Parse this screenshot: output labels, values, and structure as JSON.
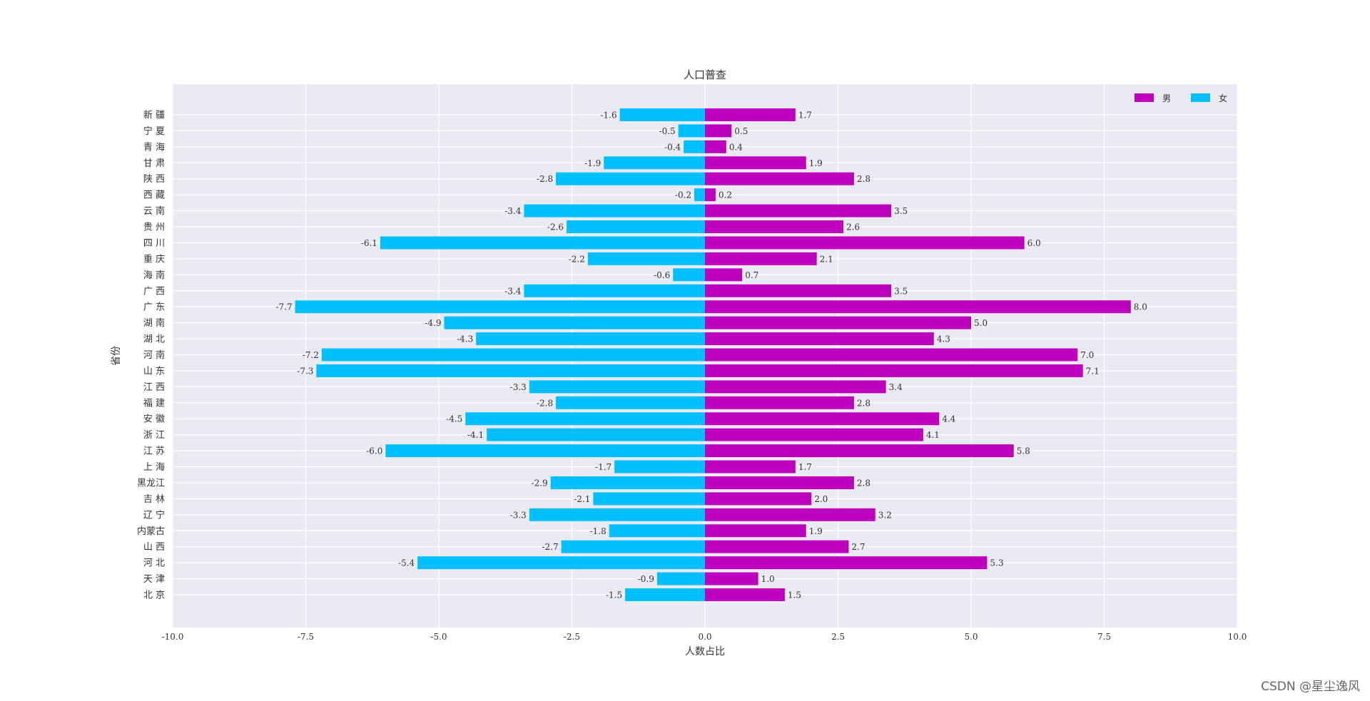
{
  "watermark": "CSDN @星尘逸风",
  "chart_data": {
    "type": "bar",
    "orientation": "horizontal",
    "title": "人口普查",
    "xlabel": "人数占比",
    "ylabel": "省份",
    "xlim": [
      -10,
      10
    ],
    "xticks": [
      -10,
      -7.5,
      -5,
      -2.5,
      0,
      2.5,
      5,
      7.5,
      10
    ],
    "xtick_labels": [
      "-10.0",
      "-7.5",
      "-5.0",
      "-2.5",
      "0.0",
      "2.5",
      "5.0",
      "7.5",
      "10.0"
    ],
    "grid": true,
    "legend_position": "top-right",
    "categories": [
      "北 京",
      "天 津",
      "河 北",
      "山 西",
      "内蒙古",
      "辽 宁",
      "吉 林",
      "黑龙江",
      "上 海",
      "江 苏",
      "浙 江",
      "安 徽",
      "福 建",
      "江 西",
      "山 东",
      "河 南",
      "湖 北",
      "湖 南",
      "广 东",
      "广 西",
      "海 南",
      "重 庆",
      "四 川",
      "贵 州",
      "云 南",
      "西 藏",
      "陕 西",
      "甘 肃",
      "青 海",
      "宁 夏",
      "新 疆"
    ],
    "series": [
      {
        "name": "男",
        "color": "#bf00bf",
        "values": [
          1.5,
          1.0,
          5.3,
          2.7,
          1.9,
          3.2,
          2.0,
          2.8,
          1.7,
          5.8,
          4.1,
          4.4,
          2.8,
          3.4,
          7.1,
          7.0,
          4.3,
          5.0,
          8.0,
          3.5,
          0.7,
          2.1,
          6.0,
          2.6,
          3.5,
          0.2,
          2.8,
          1.9,
          0.4,
          0.5,
          1.7
        ]
      },
      {
        "name": "女",
        "color": "#00bfff",
        "values": [
          -1.5,
          -0.9,
          -5.4,
          -2.7,
          -1.8,
          -3.3,
          -2.1,
          -2.9,
          -1.7,
          -6.0,
          -4.1,
          -4.5,
          -2.8,
          -3.3,
          -7.3,
          -7.2,
          -4.3,
          -4.9,
          -7.7,
          -3.4,
          -0.6,
          -2.2,
          -6.1,
          -2.6,
          -3.4,
          -0.2,
          -2.8,
          -1.9,
          -0.4,
          -0.5,
          -1.6
        ]
      }
    ]
  }
}
